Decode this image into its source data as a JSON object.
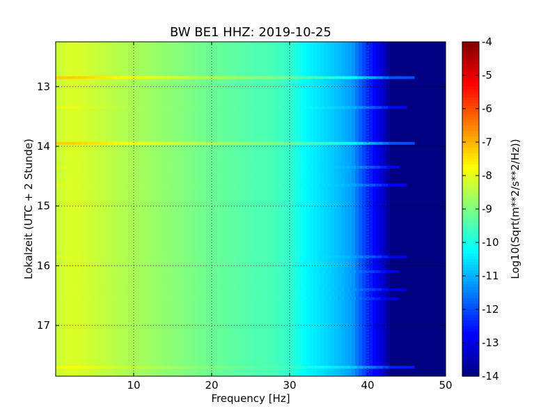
{
  "chart_data": {
    "type": "heatmap",
    "title": "BW BE1 HHZ: 2019-10-25",
    "xlabel": "Frequency [Hz]",
    "ylabel": "Lokalzeit (UTC + 2 Stunde)",
    "xlim": [
      0,
      50
    ],
    "ylim": [
      12.25,
      17.85
    ],
    "y_inverted": true,
    "x_ticks": [
      "10",
      "20",
      "30",
      "40",
      "50"
    ],
    "x_tick_values": [
      10,
      20,
      30,
      40,
      50
    ],
    "y_ticks": [
      "13",
      "14",
      "15",
      "16",
      "17"
    ],
    "y_tick_values": [
      13,
      14,
      15,
      16,
      17
    ],
    "grid": true,
    "colormap": "jet",
    "colorbar": {
      "label": "Log10(Sqrt(m**2/s**2/Hz))",
      "min": -14,
      "max": -4,
      "ticks": [
        "-4",
        "-5",
        "-6",
        "-7",
        "-8",
        "-9",
        "-10",
        "-11",
        "-12",
        "-13",
        "-14"
      ],
      "tick_values": [
        -4,
        -5,
        -6,
        -7,
        -8,
        -9,
        -10,
        -11,
        -12,
        -13,
        -14
      ]
    },
    "frequency_profile": {
      "frequency_hz": [
        0,
        2,
        4,
        6,
        10,
        15,
        20,
        25,
        28,
        30,
        31,
        32,
        34,
        36,
        38,
        39,
        40,
        41,
        42,
        43,
        50
      ],
      "log10_amplitude": [
        -8.3,
        -8.1,
        -8.2,
        -8.35,
        -8.6,
        -8.9,
        -9.2,
        -9.45,
        -9.55,
        -9.75,
        -10.0,
        -10.3,
        -10.55,
        -10.85,
        -11.2,
        -11.8,
        -12.3,
        -12.8,
        -13.3,
        -14,
        -14
      ]
    },
    "transient_bands": [
      {
        "time": 12.85,
        "log10_amplitude": -7.3,
        "fmax_hz": 46
      },
      {
        "time": 13.35,
        "log10_amplitude": -8.0,
        "fmax_hz": 45
      },
      {
        "time": 13.95,
        "log10_amplitude": -7.3,
        "fmax_hz": 46
      },
      {
        "time": 14.35,
        "log10_amplitude": -8.1,
        "fmax_hz": 44
      },
      {
        "time": 14.65,
        "log10_amplitude": -8.1,
        "fmax_hz": 45
      },
      {
        "time": 15.85,
        "log10_amplitude": -8.1,
        "fmax_hz": 45
      },
      {
        "time": 16.1,
        "log10_amplitude": -8.3,
        "fmax_hz": 44
      },
      {
        "time": 16.4,
        "log10_amplitude": -8.3,
        "fmax_hz": 45
      },
      {
        "time": 16.55,
        "log10_amplitude": -8.4,
        "fmax_hz": 44
      },
      {
        "time": 17.7,
        "log10_amplitude": -7.8,
        "fmax_hz": 46
      }
    ]
  }
}
